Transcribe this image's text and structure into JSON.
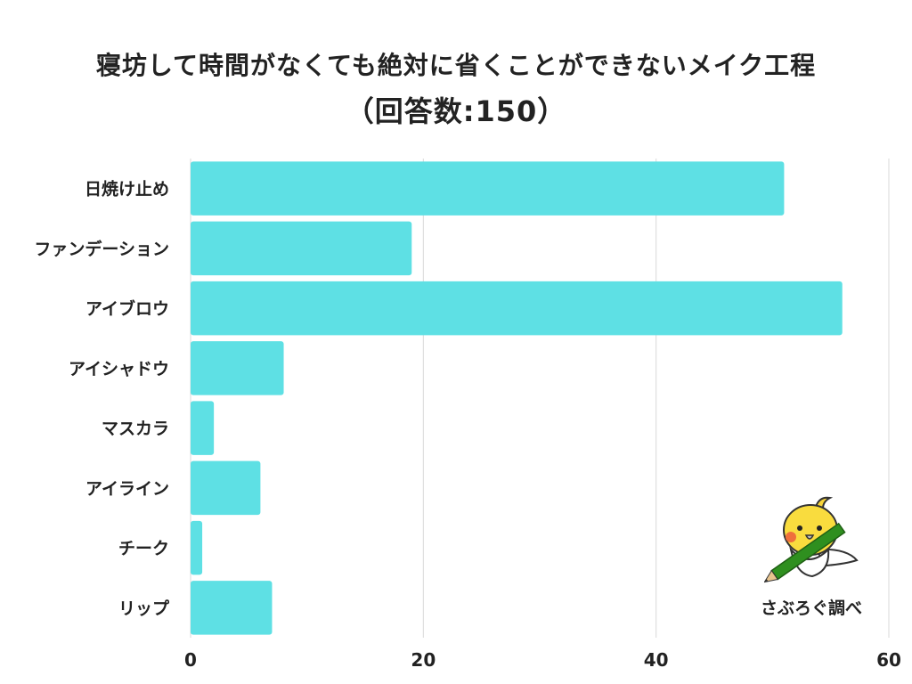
{
  "header": {
    "title": "寝坊して時間がなくても絶対に省くことができないメイク工程",
    "subtitle": "（回答数:150）"
  },
  "credit": {
    "text": "さぶろぐ調べ",
    "mascot_icon": "cockatiel-with-pencil-icon"
  },
  "colors": {
    "bar": "#5ee0e4",
    "grid": "#d9d9d9"
  },
  "chart_data": {
    "type": "bar",
    "orientation": "horizontal",
    "title": "寝坊して時間がなくても絶対に省くことができないメイク工程",
    "subtitle": "（回答数:150）",
    "categories": [
      "日焼け止め",
      "ファンデーション",
      "アイブロウ",
      "アイシャドウ",
      "マスカラ",
      "アイライン",
      "チーク",
      "リップ"
    ],
    "values": [
      51,
      19,
      56,
      8,
      2,
      6,
      1,
      7
    ],
    "xlim": [
      0,
      60
    ],
    "xticks": [
      0,
      20,
      40,
      60
    ],
    "xlabel": "",
    "ylabel": "",
    "grid": true,
    "legend": "none"
  }
}
